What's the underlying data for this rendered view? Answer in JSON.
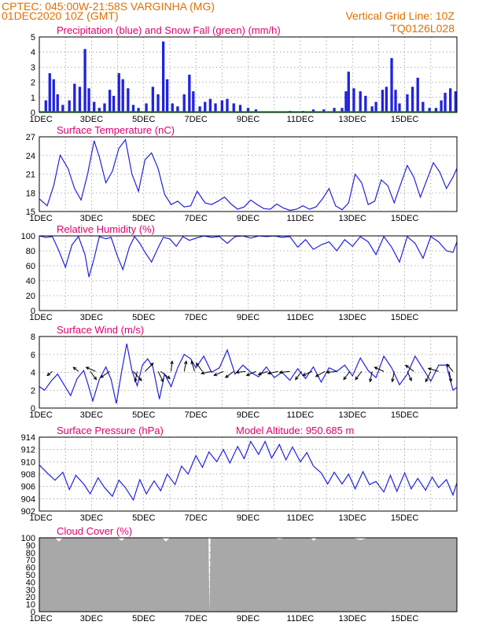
{
  "header": {
    "line1": "CPTEC:  045:00W-21:58S  VARGINHA (MG)",
    "line2": "01DEC2020 10Z (GMT)",
    "grid_note": "Vertical Grid Line: 10Z",
    "code": "TQ0126L028"
  },
  "colors": {
    "rain": "#2222dd",
    "snow": "#00aa00",
    "line": "#2222dd",
    "cloud": "#a8a8a8",
    "title": "#e0006c",
    "header": "#e07000"
  },
  "x_ticks": [
    "1DEC",
    "3DEC",
    "5DEC",
    "7DEC",
    "9DEC",
    "11DEC",
    "13DEC",
    "15DEC"
  ],
  "chart_data": [
    {
      "id": "precip",
      "type": "bar",
      "title": "Precipitation (blue) and Snow Fall (green) (mm/h)",
      "ylim": [
        0,
        5
      ],
      "yticks": [
        "0",
        "1",
        "2",
        "3",
        "4",
        "5"
      ],
      "series": [
        {
          "name": "Precipitation",
          "color": "#2222dd",
          "points": [
            [
              0.25,
              0.8
            ],
            [
              0.4,
              2.6
            ],
            [
              0.55,
              2.2
            ],
            [
              0.7,
              1.2
            ],
            [
              0.9,
              0.5
            ],
            [
              1.15,
              0.8
            ],
            [
              1.35,
              1.9
            ],
            [
              1.55,
              1.7
            ],
            [
              1.75,
              4.2
            ],
            [
              1.9,
              1.6
            ],
            [
              2.1,
              0.7
            ],
            [
              2.3,
              0.3
            ],
            [
              2.5,
              0.6
            ],
            [
              2.7,
              1.5
            ],
            [
              2.85,
              1.1
            ],
            [
              3.05,
              2.6
            ],
            [
              3.2,
              2.2
            ],
            [
              3.4,
              1.6
            ],
            [
              3.6,
              0.5
            ],
            [
              3.8,
              0.3
            ],
            [
              4.1,
              0.6
            ],
            [
              4.35,
              1.7
            ],
            [
              4.55,
              1.2
            ],
            [
              4.75,
              4.7
            ],
            [
              4.9,
              2.2
            ],
            [
              5.1,
              0.6
            ],
            [
              5.3,
              0.4
            ],
            [
              5.55,
              1.2
            ],
            [
              5.75,
              2.5
            ],
            [
              5.9,
              1.4
            ],
            [
              6.15,
              0.4
            ],
            [
              6.35,
              0.7
            ],
            [
              6.55,
              0.9
            ],
            [
              6.75,
              0.6
            ],
            [
              7.0,
              0.8
            ],
            [
              7.2,
              0.9
            ],
            [
              7.45,
              0.6
            ],
            [
              7.7,
              0.5
            ],
            [
              8.0,
              0.3
            ],
            [
              8.3,
              0.2
            ],
            [
              9.6,
              0.1
            ],
            [
              10.1,
              0.1
            ],
            [
              10.5,
              0.2
            ],
            [
              10.9,
              0.2
            ],
            [
              11.3,
              0.3
            ],
            [
              11.6,
              0.3
            ],
            [
              11.75,
              1.4
            ],
            [
              11.85,
              2.7
            ],
            [
              12.05,
              1.6
            ],
            [
              12.3,
              1.4
            ],
            [
              12.5,
              1.1
            ],
            [
              12.75,
              0.4
            ],
            [
              12.9,
              0.7
            ],
            [
              13.15,
              1.5
            ],
            [
              13.3,
              1.7
            ],
            [
              13.5,
              3.6
            ],
            [
              13.65,
              1.5
            ],
            [
              13.8,
              0.6
            ],
            [
              14.1,
              1.2
            ],
            [
              14.3,
              1.7
            ],
            [
              14.5,
              2.3
            ],
            [
              14.7,
              0.7
            ],
            [
              14.95,
              0.3
            ],
            [
              15.2,
              0.3
            ],
            [
              15.4,
              0.8
            ],
            [
              15.55,
              1.3
            ],
            [
              15.75,
              1.6
            ],
            [
              15.95,
              1.4
            ]
          ]
        },
        {
          "name": "Snow Fall",
          "color": "#00aa00",
          "points": []
        }
      ]
    },
    {
      "id": "temp",
      "type": "line",
      "title": "Surface Temperature (nC)",
      "ylim": [
        15,
        28
      ],
      "yticks": [
        "15",
        "18",
        "21",
        "24",
        "27"
      ],
      "x": [
        0,
        0.3,
        0.55,
        0.8,
        1.1,
        1.35,
        1.6,
        1.85,
        2.1,
        2.3,
        2.55,
        2.8,
        3.05,
        3.3,
        3.55,
        3.8,
        4.05,
        4.3,
        4.55,
        4.8,
        5.05,
        5.3,
        5.55,
        5.8,
        6.05,
        6.35,
        6.6,
        6.85,
        7.1,
        7.35,
        7.6,
        7.85,
        8.1,
        8.35,
        8.6,
        8.85,
        9.1,
        9.35,
        9.6,
        9.85,
        10.1,
        10.35,
        10.6,
        10.85,
        11.1,
        11.35,
        11.6,
        11.85,
        12.1,
        12.35,
        12.6,
        12.85,
        13.1,
        13.35,
        13.6,
        13.85,
        14.1,
        14.35,
        14.6,
        14.85,
        15.1,
        15.35,
        15.6,
        15.85,
        16
      ],
      "series": [
        {
          "values": [
            17.2,
            16.0,
            19.5,
            24.8,
            22.5,
            19.0,
            17.0,
            21.5,
            27.3,
            24.5,
            20.0,
            22.0,
            26.0,
            27.5,
            21.5,
            18.5,
            24.0,
            25.2,
            22.5,
            18.0,
            16.2,
            16.8,
            15.8,
            16.0,
            18.5,
            16.5,
            16.2,
            16.8,
            17.5,
            16.3,
            15.4,
            15.8,
            17.0,
            16.2,
            15.5,
            15.4,
            16.3,
            15.6,
            15.2,
            15.4,
            16.0,
            15.4,
            15.8,
            17.2,
            19.0,
            16.0,
            15.3,
            16.5,
            21.5,
            20.0,
            16.2,
            16.8,
            20.5,
            19.5,
            16.5,
            19.8,
            23.0,
            21.0,
            17.5,
            20.5,
            23.5,
            21.8,
            19.0,
            21.0,
            22.5
          ]
        }
      ]
    },
    {
      "id": "rh",
      "type": "line",
      "title": "Relative Humidity (%)",
      "ylim": [
        0,
        100
      ],
      "yticks": [
        "0",
        "20",
        "40",
        "60",
        "80",
        "100"
      ],
      "x": [
        0,
        0.25,
        0.5,
        0.75,
        1.0,
        1.25,
        1.5,
        1.75,
        1.9,
        2.1,
        2.3,
        2.55,
        2.75,
        3.0,
        3.2,
        3.45,
        3.65,
        3.85,
        4.05,
        4.3,
        4.55,
        4.75,
        5.0,
        5.25,
        5.5,
        5.75,
        6.0,
        6.3,
        6.6,
        6.9,
        7.2,
        7.5,
        7.8,
        8.1,
        8.4,
        8.7,
        9.0,
        9.3,
        9.6,
        9.9,
        10.2,
        10.5,
        10.8,
        11.1,
        11.4,
        11.7,
        12.0,
        12.3,
        12.6,
        12.9,
        13.2,
        13.5,
        13.8,
        14.1,
        14.4,
        14.7,
        15.0,
        15.3,
        15.6,
        15.85,
        16
      ],
      "series": [
        {
          "values": [
            100,
            98,
            99,
            80,
            58,
            88,
            99,
            75,
            45,
            70,
            99,
            96,
            98,
            72,
            55,
            85,
            99,
            90,
            78,
            65,
            84,
            98,
            96,
            86,
            99,
            94,
            97,
            100,
            98,
            99,
            90,
            99,
            100,
            97,
            100,
            99,
            100,
            98,
            99,
            85,
            95,
            82,
            88,
            92,
            80,
            95,
            86,
            99,
            92,
            75,
            99,
            85,
            65,
            99,
            90,
            70,
            99,
            92,
            80,
            78,
            92
          ]
        }
      ]
    },
    {
      "id": "wind",
      "type": "line",
      "title": "Surface Wind (m/s)",
      "ylim": [
        0,
        8
      ],
      "yticks": [
        "0",
        "2",
        "4",
        "6",
        "8"
      ],
      "x": [
        0,
        0.2,
        0.45,
        0.7,
        0.95,
        1.2,
        1.45,
        1.7,
        1.85,
        2.05,
        2.3,
        2.55,
        2.75,
        2.95,
        3.15,
        3.35,
        3.55,
        3.75,
        3.95,
        4.15,
        4.35,
        4.6,
        4.8,
        5.05,
        5.3,
        5.55,
        5.8,
        6.0,
        6.3,
        6.6,
        6.9,
        7.2,
        7.5,
        7.8,
        8.1,
        8.4,
        8.7,
        9.0,
        9.3,
        9.6,
        9.9,
        10.2,
        10.5,
        10.8,
        11.1,
        11.4,
        11.7,
        12.0,
        12.3,
        12.6,
        12.9,
        13.2,
        13.5,
        13.8,
        14.1,
        14.4,
        14.7,
        15.0,
        15.3,
        15.6,
        15.85,
        16
      ],
      "series": [
        {
          "values": [
            2.4,
            2.0,
            3.0,
            3.8,
            2.6,
            1.4,
            3.3,
            4.2,
            2.8,
            0.8,
            3.2,
            4.6,
            3.2,
            0.5,
            4.0,
            7.2,
            4.2,
            2.5,
            4.8,
            5.5,
            4.6,
            1.0,
            3.8,
            2.4,
            4.5,
            6.0,
            5.5,
            4.5,
            5.8,
            4.0,
            4.5,
            6.5,
            3.8,
            4.8,
            4.0,
            3.5,
            4.6,
            3.4,
            4.0,
            3.1,
            4.4,
            3.3,
            4.6,
            2.9,
            4.5,
            4.1,
            4.8,
            3.6,
            5.6,
            4.2,
            3.4,
            5.8,
            4.5,
            2.6,
            3.8,
            5.8,
            4.4,
            3.0,
            4.8,
            4.8,
            2.0,
            2.3
          ]
        }
      ],
      "arrows": [
        [
          0.5,
          -0.5,
          0.4
        ],
        [
          1.5,
          -0.5,
          -0.4
        ],
        [
          1.95,
          0.6,
          0.8
        ],
        [
          2.15,
          -0.9,
          -0.4
        ],
        [
          2.7,
          -0.9,
          0.6
        ],
        [
          3.6,
          0.8,
          0.9
        ],
        [
          3.75,
          -0.2,
          1.0
        ],
        [
          4.05,
          0.8,
          -0.8
        ],
        [
          4.55,
          0.5,
          1.0
        ],
        [
          4.65,
          0.9,
          0.7
        ],
        [
          5.05,
          0.1,
          -1.0
        ],
        [
          5.55,
          0.2,
          -1.0
        ],
        [
          5.95,
          -0.3,
          -1.0
        ],
        [
          6.25,
          -0.6,
          -0.8
        ],
        [
          6.6,
          -1.0,
          0.2
        ],
        [
          7.05,
          -0.9,
          0.4
        ],
        [
          7.45,
          -0.8,
          0.6
        ],
        [
          7.9,
          -0.9,
          0.1
        ],
        [
          8.3,
          -0.9,
          0.4
        ],
        [
          8.75,
          -0.9,
          0.3
        ],
        [
          9.15,
          -1.0,
          0.2
        ],
        [
          9.6,
          -1.0,
          0.1
        ],
        [
          10.05,
          -0.6,
          0.8
        ],
        [
          10.45,
          -0.9,
          0.4
        ],
        [
          10.95,
          -0.9,
          0.5
        ],
        [
          11.4,
          -1.0,
          0.1
        ],
        [
          11.9,
          -0.6,
          0.8
        ],
        [
          12.35,
          -0.6,
          0.8
        ],
        [
          12.75,
          -0.2,
          1.0
        ],
        [
          13.2,
          -0.9,
          -0.4
        ],
        [
          13.6,
          -0.2,
          1.0
        ],
        [
          14.1,
          0.4,
          0.9
        ],
        [
          14.35,
          -0.8,
          -0.6
        ],
        [
          15.0,
          -0.5,
          1.0
        ],
        [
          15.3,
          -1.0,
          -0.3
        ],
        [
          15.7,
          0.2,
          1.0
        ],
        [
          15.85,
          -0.6,
          -0.7
        ]
      ]
    },
    {
      "id": "pres",
      "type": "line",
      "title": "Surface Pressure (hPa)",
      "title2": "Model Altitude: 950.685 m",
      "ylim": [
        902,
        914
      ],
      "yticks": [
        "902",
        "904",
        "906",
        "908",
        "910",
        "912",
        "914"
      ],
      "x": [
        0,
        0.3,
        0.6,
        0.9,
        1.15,
        1.4,
        1.7,
        1.95,
        2.25,
        2.5,
        2.8,
        3.05,
        3.3,
        3.6,
        3.85,
        4.1,
        4.4,
        4.65,
        4.9,
        5.2,
        5.45,
        5.7,
        6.0,
        6.25,
        6.5,
        6.8,
        7.05,
        7.3,
        7.6,
        7.85,
        8.1,
        8.4,
        8.65,
        8.9,
        9.2,
        9.45,
        9.7,
        10.0,
        10.25,
        10.5,
        10.8,
        11.05,
        11.3,
        11.6,
        11.85,
        12.1,
        12.4,
        12.65,
        12.9,
        13.2,
        13.45,
        13.7,
        14.0,
        14.25,
        14.5,
        14.8,
        15.05,
        15.3,
        15.6,
        15.85,
        16
      ],
      "series": [
        {
          "values": [
            909.5,
            908.2,
            907.0,
            908.3,
            905.5,
            907.8,
            906.4,
            904.8,
            907.4,
            905.8,
            904.4,
            907.0,
            905.8,
            903.8,
            907.1,
            904.8,
            906.9,
            905.3,
            908.0,
            906.3,
            909.3,
            908.0,
            911.0,
            909.1,
            911.6,
            910.0,
            912.0,
            909.8,
            912.5,
            910.5,
            913.3,
            911.2,
            913.3,
            910.6,
            912.8,
            910.3,
            912.4,
            910.0,
            911.5,
            909.3,
            908.2,
            906.4,
            908.3,
            906.4,
            908.0,
            905.6,
            908.4,
            906.3,
            906.8,
            905.1,
            907.8,
            905.2,
            908.2,
            905.6,
            907.3,
            905.4,
            907.5,
            905.8,
            907.1,
            904.6,
            906.6
          ]
        }
      ]
    },
    {
      "id": "cloud",
      "type": "area",
      "title": "Cloud Cover (%)",
      "ylim": [
        0,
        100
      ],
      "yticks": [
        "0",
        "10",
        "20",
        "30",
        "40",
        "50",
        "60",
        "70",
        "80",
        "90",
        "100"
      ],
      "x": [
        0,
        0.6,
        0.75,
        0.9,
        1.1,
        3.0,
        3.15,
        3.3,
        4.7,
        4.85,
        5.0,
        6.48,
        6.52,
        6.56,
        9.0,
        9.2,
        9.4,
        10.4,
        10.5,
        10.65,
        12.0,
        12.3,
        12.6,
        16
      ],
      "series": [
        {
          "values": [
            100,
            100,
            95,
            100,
            100,
            100,
            96,
            100,
            100,
            95,
            100,
            100,
            0,
            100,
            100,
            98,
            100,
            100,
            96,
            100,
            100,
            97,
            100,
            100
          ]
        }
      ]
    }
  ]
}
